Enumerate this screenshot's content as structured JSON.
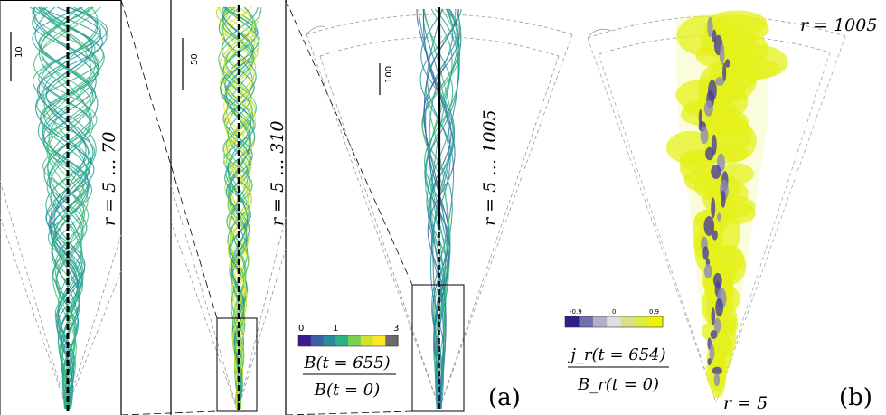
{
  "panels": {
    "zoom1": {
      "scale_label": "10",
      "range_label": "r = 5 … 70"
    },
    "zoom2": {
      "scale_label": "50",
      "range_label": "r = 5 … 310"
    },
    "zoom3": {
      "scale_label": "100",
      "range_label": "r = 5 … 1005"
    },
    "panel_a_label": "(a)",
    "panel_b_label": "(b)",
    "r_top_label": "r = 1005",
    "r_bottom_label": "r = 5"
  },
  "colorbar_B": {
    "ticks": [
      "0",
      "1",
      "3"
    ],
    "numerator": "B(t = 655)",
    "denominator": "B(t = 0)",
    "colors": [
      "#3b1c8c",
      "#3a5fa8",
      "#2a8c9a",
      "#2ab18a",
      "#7ad151",
      "#d6e12a",
      "#fde725",
      "#6b6b6b"
    ]
  },
  "colorbar_j": {
    "ticks": [
      "-0.9",
      "0",
      "0.9"
    ],
    "numerator": "j_r(t = 654)",
    "denominator": "B_r(t = 0)",
    "colors": [
      "#2d1f8a",
      "#6f6fb0",
      "#b0b0c8",
      "#e0e0e0",
      "#d8e08a",
      "#d8ee3a",
      "#eef20a"
    ]
  }
}
